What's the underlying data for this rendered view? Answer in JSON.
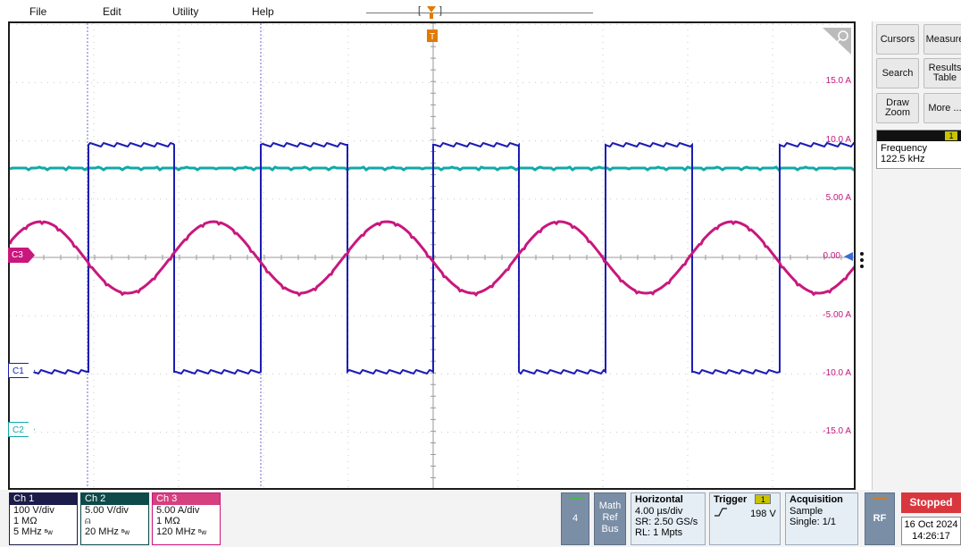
{
  "menu": {
    "file": "File",
    "edit": "Edit",
    "utility": "Utility",
    "help": "Help"
  },
  "trigger_marker": "T",
  "ref_labels": [
    "15.0 A",
    "10.0 A",
    "5.00 A",
    "0.00",
    "-5.00 A",
    "-10.0 A",
    "-15.0 A"
  ],
  "markers": {
    "c1": "C1",
    "c2": "C2",
    "c3": "C3"
  },
  "right_panel": {
    "cursors": "Cursors",
    "measure": "Measure",
    "search": "Search",
    "results_table": "Results\nTable",
    "draw_zoom": "Draw\nZoom",
    "more": "More ...",
    "badge_channel": "1",
    "freq_label": "Frequency",
    "freq_value": "122.5 kHz"
  },
  "channels": [
    {
      "name": "Ch 1",
      "scale": "100 V/div",
      "impedance": "1 MΩ",
      "bw": "5 MHz",
      "color": "#1c1cb4"
    },
    {
      "name": "Ch 2",
      "scale": "5.00 V/div",
      "impedance": "",
      "bw": "20 MHz",
      "color": "#12a8a8"
    },
    {
      "name": "Ch 3",
      "scale": "5.00 A/div",
      "impedance": "1 MΩ",
      "bw": "120 MHz",
      "color": "#c9177d"
    }
  ],
  "math_count": "4",
  "math_ref_bus": "Math\nRef\nBus",
  "horizontal": {
    "title": "Horizontal",
    "scale": "4.00 µs/div",
    "sr": "SR: 2.50 GS/s",
    "rl": "RL: 1 Mpts"
  },
  "trigger": {
    "title": "Trigger",
    "channel": "1",
    "level": "198 V"
  },
  "acquisition": {
    "title": "Acquisition",
    "mode": "Sample",
    "single": "Single: 1/1"
  },
  "rf": "RF",
  "status": "Stopped",
  "date": "16 Oct 2024",
  "time": "14:26:17",
  "colors": {
    "ch1": "#1c1cb4",
    "ch2": "#12a8a8",
    "ch3": "#c9177d",
    "trigger": "#e07b00"
  }
}
